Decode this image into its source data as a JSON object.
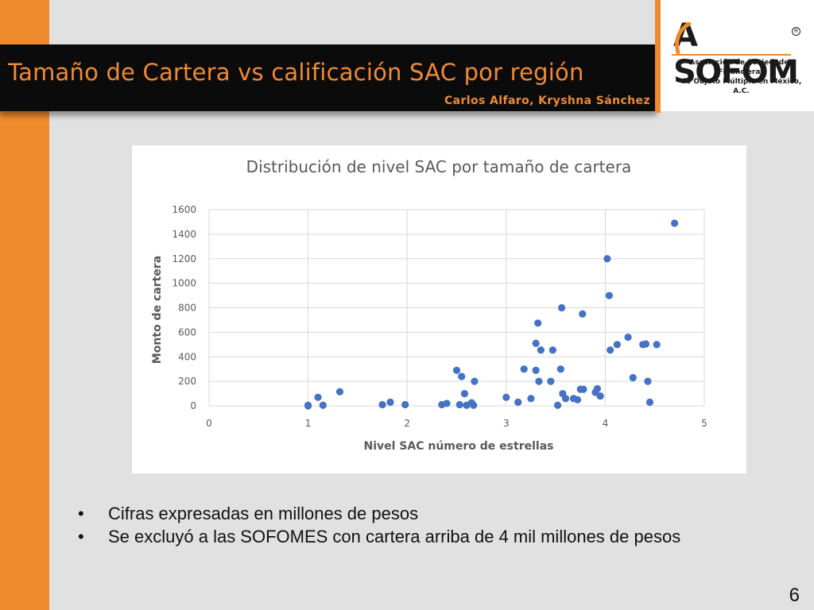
{
  "header": {
    "title": "Tamaño de Cartera vs calificación SAC por región",
    "authors": "Carlos Alfaro, Kryshna Sánchez"
  },
  "logo": {
    "word_rest": "SOFOM",
    "word_first": "A",
    "registered": "R",
    "subtitle_line1": "Asociación de Sociedades Financieras",
    "subtitle_line2": "de Objeto Múltiple en México, A.C."
  },
  "colors": {
    "accent_orange": "#ee8a2c",
    "point_blue": "#4472c4",
    "header_black": "#0b0b0b"
  },
  "chart_data": {
    "type": "scatter",
    "title": "Distribución de nivel SAC por tamaño de cartera",
    "xlabel": "Nivel SAC número de estrellas",
    "ylabel": "Monto de cartera",
    "xlim": [
      0,
      5
    ],
    "ylim": [
      0,
      1600
    ],
    "xticks": [
      0,
      1,
      2,
      3,
      4,
      5
    ],
    "yticks": [
      0,
      200,
      400,
      600,
      800,
      1000,
      1200,
      1400,
      1600
    ],
    "grid": "vertical-and-horizontal",
    "points": [
      {
        "x": 1.0,
        "y": 0
      },
      {
        "x": 1.0,
        "y": 5
      },
      {
        "x": 1.1,
        "y": 70
      },
      {
        "x": 1.15,
        "y": 5
      },
      {
        "x": 1.32,
        "y": 115
      },
      {
        "x": 1.75,
        "y": 10
      },
      {
        "x": 1.83,
        "y": 30
      },
      {
        "x": 1.98,
        "y": 10
      },
      {
        "x": 2.35,
        "y": 10
      },
      {
        "x": 2.4,
        "y": 20
      },
      {
        "x": 2.5,
        "y": 290
      },
      {
        "x": 2.53,
        "y": 10
      },
      {
        "x": 2.55,
        "y": 240
      },
      {
        "x": 2.58,
        "y": 100
      },
      {
        "x": 2.6,
        "y": 5
      },
      {
        "x": 2.65,
        "y": 25
      },
      {
        "x": 2.67,
        "y": 5
      },
      {
        "x": 2.68,
        "y": 200
      },
      {
        "x": 3.0,
        "y": 70
      },
      {
        "x": 3.12,
        "y": 30
      },
      {
        "x": 3.18,
        "y": 300
      },
      {
        "x": 3.25,
        "y": 60
      },
      {
        "x": 3.3,
        "y": 510
      },
      {
        "x": 3.3,
        "y": 290
      },
      {
        "x": 3.32,
        "y": 675
      },
      {
        "x": 3.33,
        "y": 200
      },
      {
        "x": 3.35,
        "y": 455
      },
      {
        "x": 3.45,
        "y": 200
      },
      {
        "x": 3.47,
        "y": 455
      },
      {
        "x": 3.52,
        "y": 5
      },
      {
        "x": 3.55,
        "y": 300
      },
      {
        "x": 3.56,
        "y": 800
      },
      {
        "x": 3.57,
        "y": 100
      },
      {
        "x": 3.6,
        "y": 60
      },
      {
        "x": 3.68,
        "y": 60
      },
      {
        "x": 3.72,
        "y": 50
      },
      {
        "x": 3.75,
        "y": 135
      },
      {
        "x": 3.78,
        "y": 135
      },
      {
        "x": 3.77,
        "y": 750
      },
      {
        "x": 3.9,
        "y": 110
      },
      {
        "x": 3.92,
        "y": 140
      },
      {
        "x": 3.95,
        "y": 80
      },
      {
        "x": 4.02,
        "y": 1200
      },
      {
        "x": 4.04,
        "y": 900
      },
      {
        "x": 4.05,
        "y": 455
      },
      {
        "x": 4.12,
        "y": 500
      },
      {
        "x": 4.23,
        "y": 560
      },
      {
        "x": 4.28,
        "y": 230
      },
      {
        "x": 4.38,
        "y": 500
      },
      {
        "x": 4.41,
        "y": 505
      },
      {
        "x": 4.43,
        "y": 200
      },
      {
        "x": 4.45,
        "y": 30
      },
      {
        "x": 4.52,
        "y": 500
      },
      {
        "x": 4.7,
        "y": 1490
      }
    ]
  },
  "bullets": [
    "Cifras expresadas en millones de pesos",
    "Se excluyó a las SOFOMES con cartera arriba de 4 mil millones de pesos"
  ],
  "bullet_symbol": "•",
  "page_number": "6"
}
